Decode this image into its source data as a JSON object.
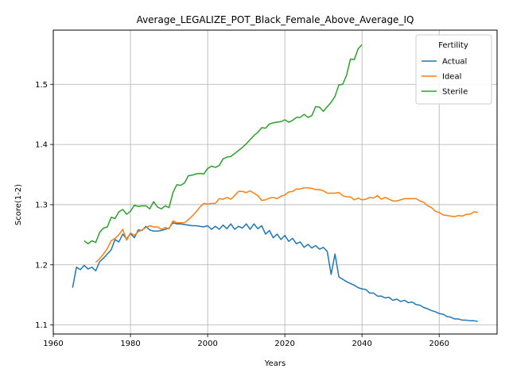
{
  "chart_data": {
    "type": "line",
    "title": "Average_LEGALIZE_POT_Black_Female_Above_Average_IQ",
    "xlabel": "Years",
    "ylabel": "Score(1-2)",
    "xlim": [
      1960,
      2075
    ],
    "ylim": [
      1.085,
      1.59
    ],
    "xticks": [
      1960,
      1980,
      2000,
      2020,
      2040,
      2060
    ],
    "yticks": [
      1.1,
      1.2,
      1.3,
      1.4,
      1.5
    ],
    "grid": true,
    "legend": {
      "title": "Fertility",
      "placement": "top-right"
    },
    "series": [
      {
        "name": "Actual",
        "color": "#1f77b4",
        "x": [
          1965,
          1966,
          1967,
          1968,
          1969,
          1970,
          1971,
          1972,
          1973,
          1974,
          1975,
          1976,
          1977,
          1978,
          1979,
          1980,
          1981,
          1982,
          1983,
          1984,
          1985,
          1986,
          1987,
          1988,
          1989,
          1990,
          1991,
          1992,
          1993,
          1994,
          1995,
          1996,
          1997,
          1998,
          1999,
          2000,
          2001,
          2002,
          2003,
          2004,
          2005,
          2006,
          2007,
          2008,
          2009,
          2010,
          2011,
          2012,
          2013,
          2014,
          2015,
          2016,
          2017,
          2018,
          2019,
          2020,
          2021,
          2022,
          2023,
          2024,
          2025,
          2026,
          2027,
          2028,
          2029,
          2030,
          2031,
          2032,
          2033,
          2034,
          2035,
          2036,
          2037,
          2038,
          2039,
          2040,
          2041,
          2042,
          2043,
          2044,
          2045,
          2046,
          2047,
          2048,
          2049,
          2050,
          2051,
          2052,
          2053,
          2054,
          2055,
          2056,
          2057,
          2058,
          2059,
          2060,
          2061,
          2062,
          2063,
          2064,
          2065,
          2066,
          2067,
          2068,
          2069,
          2070
        ],
        "y": [
          1.162,
          1.196,
          1.192,
          1.199,
          1.193,
          1.196,
          1.19,
          1.205,
          1.211,
          1.218,
          1.225,
          1.242,
          1.238,
          1.251,
          1.243,
          1.252,
          1.245,
          1.258,
          1.257,
          1.264,
          1.258,
          1.256,
          1.256,
          1.257,
          1.259,
          1.261,
          1.27,
          1.268,
          1.268,
          1.267,
          1.266,
          1.265,
          1.265,
          1.264,
          1.263,
          1.265,
          1.259,
          1.264,
          1.259,
          1.266,
          1.26,
          1.268,
          1.259,
          1.264,
          1.261,
          1.268,
          1.259,
          1.268,
          1.26,
          1.265,
          1.251,
          1.257,
          1.245,
          1.251,
          1.242,
          1.249,
          1.239,
          1.244,
          1.235,
          1.238,
          1.229,
          1.234,
          1.228,
          1.232,
          1.226,
          1.229,
          1.222,
          1.184,
          1.218,
          1.18,
          1.176,
          1.172,
          1.169,
          1.166,
          1.162,
          1.16,
          1.159,
          1.153,
          1.153,
          1.148,
          1.148,
          1.145,
          1.146,
          1.141,
          1.143,
          1.139,
          1.141,
          1.137,
          1.138,
          1.134,
          1.133,
          1.129,
          1.127,
          1.124,
          1.122,
          1.119,
          1.118,
          1.114,
          1.113,
          1.11,
          1.11,
          1.108,
          1.108,
          1.107,
          1.107,
          1.106
        ]
      },
      {
        "name": "Ideal",
        "color": "#ff7f0e",
        "x": [
          1971,
          1972,
          1973,
          1974,
          1975,
          1976,
          1977,
          1978,
          1979,
          1980,
          1981,
          1982,
          1983,
          1984,
          1985,
          1986,
          1987,
          1988,
          1989,
          1990,
          1991,
          1992,
          1993,
          1994,
          1995,
          1996,
          1997,
          1998,
          1999,
          2000,
          2001,
          2002,
          2003,
          2004,
          2005,
          2006,
          2007,
          2008,
          2009,
          2010,
          2011,
          2012,
          2013,
          2014,
          2015,
          2016,
          2017,
          2018,
          2019,
          2020,
          2021,
          2022,
          2023,
          2024,
          2025,
          2026,
          2027,
          2028,
          2029,
          2030,
          2031,
          2032,
          2033,
          2034,
          2035,
          2036,
          2037,
          2038,
          2039,
          2040,
          2041,
          2042,
          2043,
          2044,
          2045,
          2046,
          2047,
          2048,
          2049,
          2050,
          2051,
          2052,
          2053,
          2054,
          2055,
          2056,
          2057,
          2058,
          2059,
          2060,
          2061,
          2062,
          2063,
          2064,
          2065,
          2066,
          2067,
          2068,
          2069,
          2070
        ],
        "y": [
          1.204,
          1.21,
          1.218,
          1.227,
          1.24,
          1.244,
          1.25,
          1.259,
          1.241,
          1.253,
          1.249,
          1.255,
          1.258,
          1.262,
          1.265,
          1.263,
          1.263,
          1.259,
          1.262,
          1.26,
          1.273,
          1.27,
          1.27,
          1.27,
          1.275,
          1.281,
          1.288,
          1.296,
          1.302,
          1.301,
          1.302,
          1.302,
          1.31,
          1.309,
          1.312,
          1.309,
          1.315,
          1.322,
          1.322,
          1.32,
          1.323,
          1.319,
          1.315,
          1.307,
          1.308,
          1.311,
          1.312,
          1.31,
          1.314,
          1.316,
          1.321,
          1.322,
          1.326,
          1.326,
          1.328,
          1.328,
          1.327,
          1.325,
          1.325,
          1.323,
          1.319,
          1.319,
          1.319,
          1.32,
          1.315,
          1.313,
          1.313,
          1.308,
          1.311,
          1.308,
          1.309,
          1.312,
          1.311,
          1.315,
          1.309,
          1.312,
          1.309,
          1.306,
          1.306,
          1.308,
          1.31,
          1.31,
          1.31,
          1.31,
          1.306,
          1.304,
          1.298,
          1.295,
          1.289,
          1.287,
          1.283,
          1.282,
          1.281,
          1.28,
          1.282,
          1.281,
          1.284,
          1.284,
          1.288,
          1.287
        ]
      },
      {
        "name": "Sterile",
        "color": "#2ca02c",
        "x": [
          1968,
          1969,
          1970,
          1971,
          1972,
          1973,
          1974,
          1975,
          1976,
          1977,
          1978,
          1979,
          1980,
          1981,
          1982,
          1983,
          1984,
          1985,
          1986,
          1987,
          1988,
          1989,
          1990,
          1991,
          1992,
          1993,
          1994,
          1995,
          1996,
          1997,
          1998,
          1999,
          2000,
          2001,
          2002,
          2003,
          2004,
          2005,
          2006,
          2007,
          2008,
          2009,
          2010,
          2011,
          2012,
          2013,
          2014,
          2015,
          2016,
          2017,
          2018,
          2019,
          2020,
          2021,
          2022,
          2023,
          2024,
          2025,
          2026,
          2027,
          2028,
          2029,
          2030,
          2031,
          2032,
          2033,
          2034,
          2035,
          2036,
          2037,
          2038,
          2039,
          2040
        ],
        "y": [
          1.24,
          1.235,
          1.24,
          1.237,
          1.254,
          1.261,
          1.263,
          1.279,
          1.277,
          1.288,
          1.292,
          1.284,
          1.289,
          1.299,
          1.297,
          1.298,
          1.298,
          1.293,
          1.305,
          1.296,
          1.293,
          1.298,
          1.295,
          1.32,
          1.333,
          1.332,
          1.336,
          1.348,
          1.349,
          1.351,
          1.352,
          1.351,
          1.36,
          1.364,
          1.362,
          1.365,
          1.376,
          1.379,
          1.38,
          1.385,
          1.39,
          1.395,
          1.401,
          1.408,
          1.415,
          1.42,
          1.428,
          1.427,
          1.434,
          1.436,
          1.437,
          1.438,
          1.441,
          1.437,
          1.44,
          1.445,
          1.445,
          1.45,
          1.445,
          1.448,
          1.463,
          1.462,
          1.455,
          1.463,
          1.47,
          1.48,
          1.499,
          1.5,
          1.515,
          1.542,
          1.541,
          1.559,
          1.566
        ]
      }
    ]
  }
}
